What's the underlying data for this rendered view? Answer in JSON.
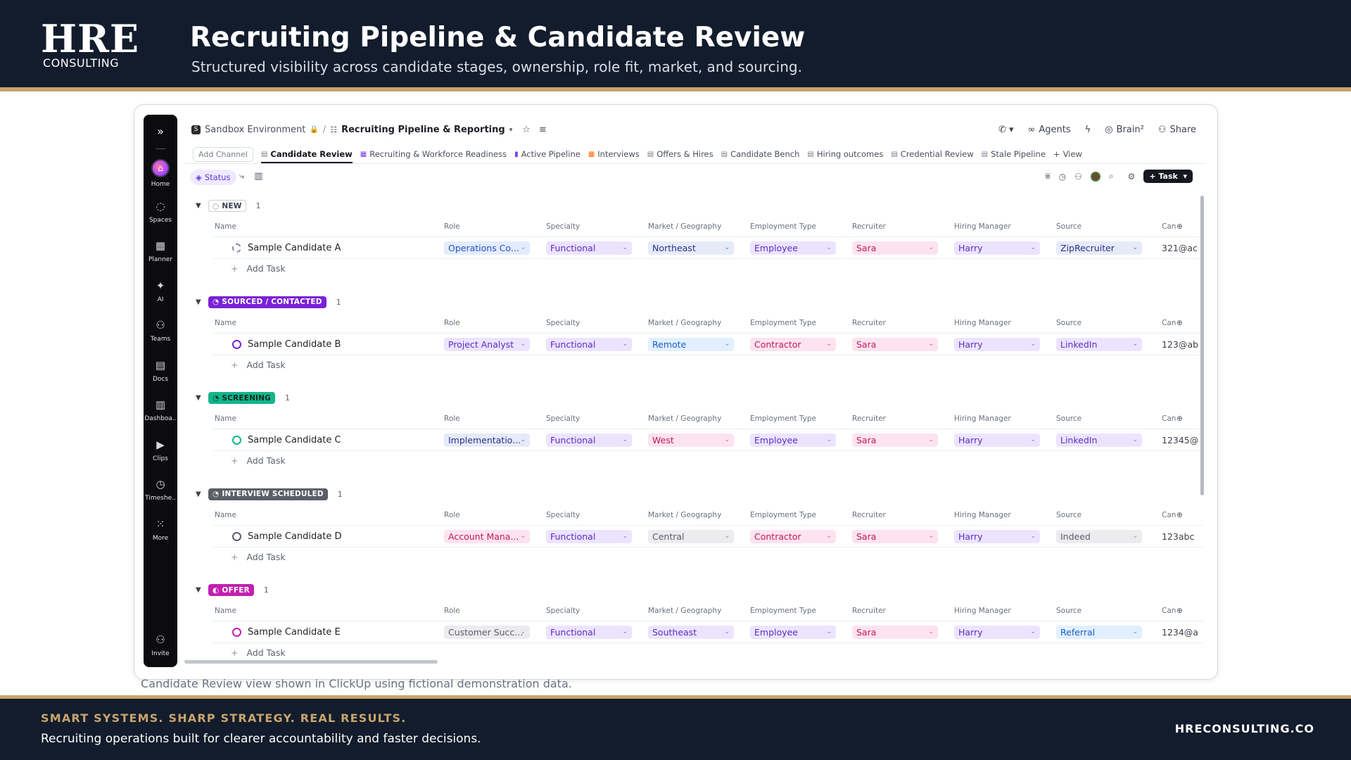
{
  "brand": {
    "logo_main": "HRE",
    "logo_sub": "CONSULTING"
  },
  "header": {
    "title": "Recruiting Pipeline & Candidate Review",
    "subtitle": "Structured visibility across candidate stages, ownership, role fit, market, and sourcing."
  },
  "caption": "Candidate Review view shown in ClickUp using fictional demonstration data.",
  "footer": {
    "tagline": "SMART SYSTEMS. SHARP STRATEGY. REAL RESULTS.",
    "subline": "Recruiting operations built for clearer accountability and faster decisions.",
    "url": "HRECONSULTING.CO"
  },
  "app": {
    "rail": {
      "expand_icon": "chevrons-right-icon",
      "items": [
        {
          "label": "Home",
          "icon": "home-icon"
        },
        {
          "label": "Spaces",
          "icon": "planet-icon"
        },
        {
          "label": "Planner",
          "icon": "calendar-icon"
        },
        {
          "label": "AI",
          "icon": "ai-icon"
        },
        {
          "label": "Teams",
          "icon": "teams-icon"
        },
        {
          "label": "Docs",
          "icon": "doc-icon"
        },
        {
          "label": "Dashboa..",
          "icon": "dashboard-icon"
        },
        {
          "label": "Clips",
          "icon": "video-icon"
        },
        {
          "label": "Timeshe..",
          "icon": "clock-icon"
        },
        {
          "label": "More",
          "icon": "grid-icon"
        }
      ],
      "invite": "Invite"
    },
    "breadcrumb": {
      "workspace_initial": "S",
      "workspace": "Sandbox Environment",
      "separator": "/",
      "list": "Recruiting Pipeline & Reporting"
    },
    "topright": {
      "agents": "Agents",
      "brain": "Brain²",
      "share": "Share"
    },
    "tabs": {
      "add_channel": "Add Channel",
      "items": [
        "Candidate Review",
        "Recruiting & Workforce Readiness",
        "Active Pipeline",
        "Interviews",
        "Offers & Hires",
        "Candidate Bench",
        "Hiring outcomes",
        "Credential Review",
        "Stale Pipeline"
      ],
      "add_view": "View"
    },
    "toolbar": {
      "status_chip": "Status",
      "task_button": "Task"
    },
    "columns": {
      "name": "Name",
      "role": "Role",
      "specialty": "Specialty",
      "market": "Market / Geography",
      "employment": "Employment Type",
      "recruiter": "Recruiter",
      "manager": "Hiring Manager",
      "source": "Source",
      "candidate": "Can"
    },
    "add_task": "Add Task",
    "groups": [
      {
        "status": "NEW",
        "count": "1",
        "badge_bg": "#ffffff",
        "badge_fg": "#3a3f4b",
        "badge_border": "#c9ccd3",
        "candidate": "Sample Candidate A",
        "role": "Operations Co...",
        "role_style": "p-blue",
        "specialty": "Functional",
        "market": "Northeast",
        "market_style": "p-navy",
        "employment": "Employee",
        "employment_style": "p-purple",
        "recruiter": "Sara",
        "manager": "Harry",
        "source": "ZipRecruiter",
        "source_style": "p-navy",
        "email": "321@ac"
      },
      {
        "status": "SOURCED / CONTACTED",
        "count": "1",
        "badge_bg": "#7a22d6",
        "badge_fg": "#ffffff",
        "badge_border": "#7a22d6",
        "candidate": "Sample Candidate B",
        "role": "Project Analyst",
        "role_style": "p-purple",
        "specialty": "Functional",
        "market": "Remote",
        "market_style": "p-sky",
        "employment": "Contractor",
        "employment_style": "p-pink",
        "recruiter": "Sara",
        "manager": "Harry",
        "source": "LinkedIn",
        "source_style": "p-purple",
        "email": "123@ab"
      },
      {
        "status": "SCREENING",
        "count": "1",
        "badge_bg": "#13b58a",
        "badge_fg": "#0d2a22",
        "badge_border": "#13b58a",
        "candidate": "Sample Candidate C",
        "role": "Implementatio...",
        "role_style": "p-navy",
        "specialty": "Functional",
        "market": "West",
        "market_style": "p-pink",
        "employment": "Employee",
        "employment_style": "p-purple",
        "recruiter": "Sara",
        "manager": "Harry",
        "source": "LinkedIn",
        "source_style": "p-purple",
        "email": "12345@"
      },
      {
        "status": "INTERVIEW SCHEDULED",
        "count": "1",
        "badge_bg": "#5b5e66",
        "badge_fg": "#ffffff",
        "badge_border": "#5b5e66",
        "candidate": "Sample Candidate D",
        "role": "Account Mana...",
        "role_style": "p-pink",
        "specialty": "Functional",
        "market": "Central",
        "market_style": "p-grey",
        "employment": "Contractor",
        "employment_style": "p-pink",
        "recruiter": "Sara",
        "manager": "Harry",
        "source": "Indeed",
        "source_style": "p-grey",
        "email": "123abc"
      },
      {
        "status": "OFFER",
        "count": "1",
        "badge_bg": "#c21fb0",
        "badge_fg": "#ffffff",
        "badge_border": "#c21fb0",
        "candidate": "Sample Candidate E",
        "role": "Customer Succ...",
        "role_style": "p-grey",
        "specialty": "Functional",
        "market": "Southeast",
        "market_style": "p-purple",
        "employment": "Employee",
        "employment_style": "p-purple",
        "recruiter": "Sara",
        "manager": "Harry",
        "source": "Referral",
        "source_style": "p-sky",
        "email": "1234@a"
      }
    ]
  }
}
